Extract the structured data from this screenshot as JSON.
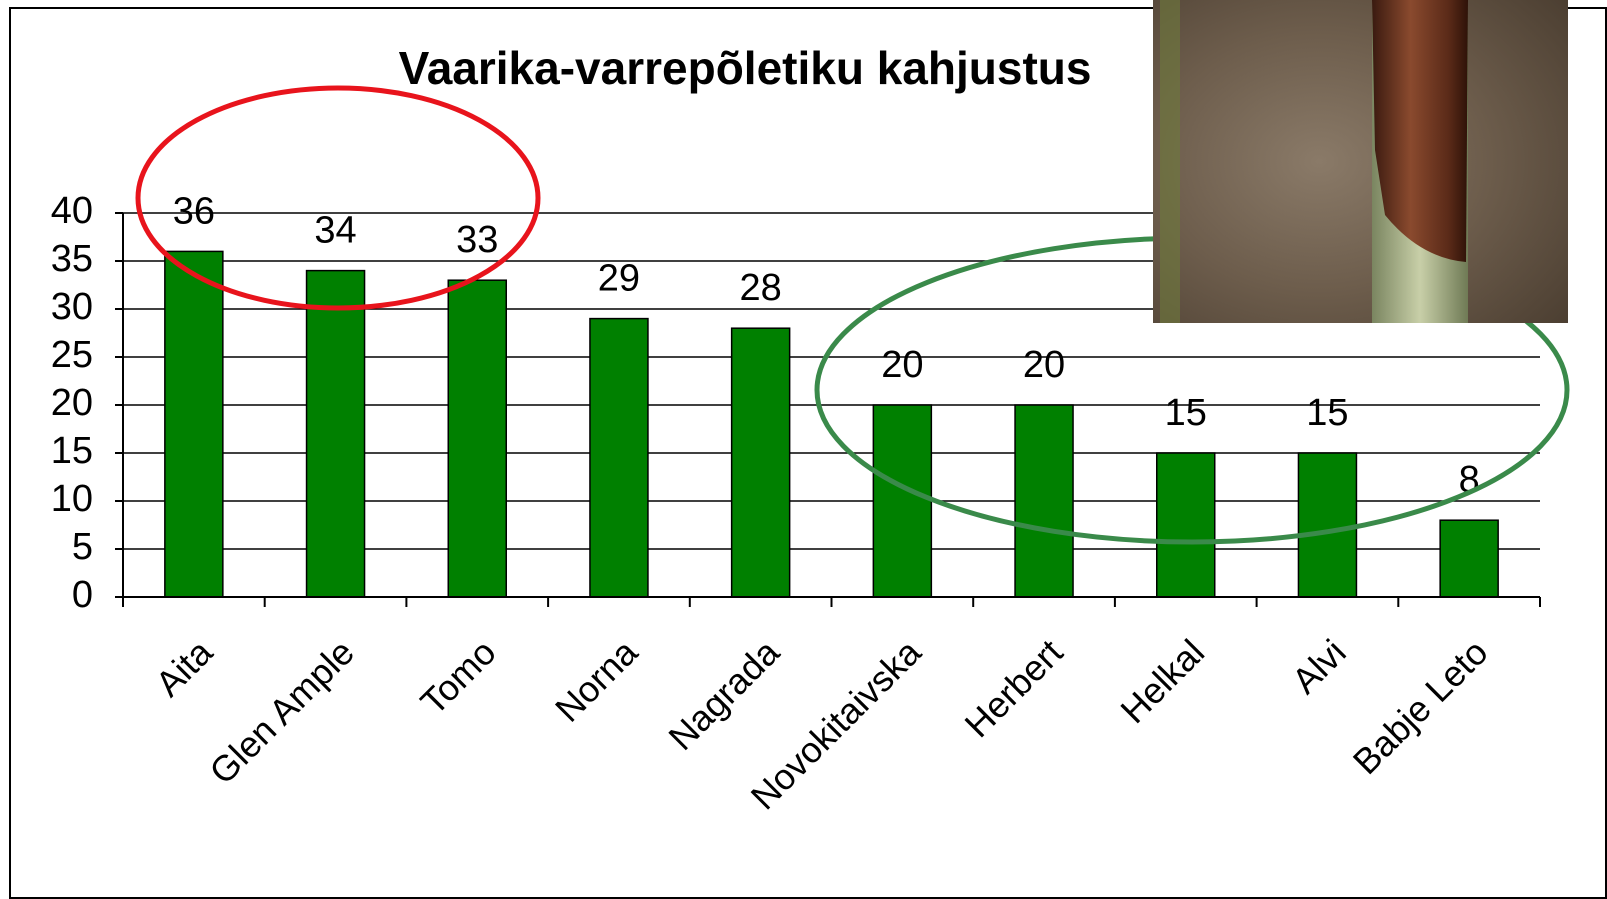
{
  "chart_data": {
    "type": "bar",
    "title": "Vaarika-varrepõletiku kahjustus",
    "categories": [
      "Aita",
      "Glen Ample",
      "Tomo",
      "Norna",
      "Nagrada",
      "Novokitaivska",
      "Herbert",
      "Helkal",
      "Alvi",
      "Babje Leto"
    ],
    "values": [
      36,
      34,
      33,
      29,
      28,
      20,
      20,
      15,
      15,
      8
    ],
    "color": "#008000",
    "ylim": [
      0,
      40
    ],
    "yticks": [
      0,
      5,
      10,
      15,
      20,
      25,
      30,
      35,
      40
    ],
    "grid": true
  }
}
